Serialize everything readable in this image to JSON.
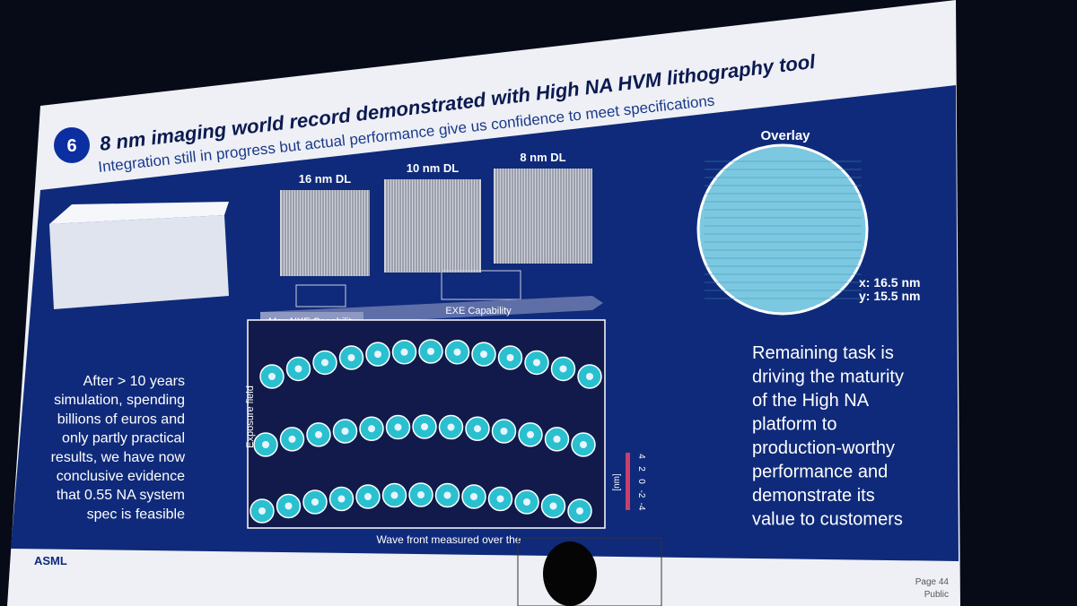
{
  "slide": {
    "number": "6",
    "title": "8 nm imaging world record demonstrated with High NA HVM lithography tool",
    "subtitle": "Integration still in progress but actual performance give us confidence to meet specifications",
    "images": [
      "16 nm DL",
      "10 nm DL",
      "8 nm DL"
    ],
    "capabilities": [
      "Max NXE Capability",
      "EXE Capability"
    ],
    "overlay": {
      "title": "Overlay",
      "x": "x: 16.5 nm",
      "y": "y: 15.5 nm"
    },
    "left_text": [
      "After > 10 years",
      "simulation, spending",
      "billions of euros and",
      "only partly practical",
      "results, we have now",
      "conclusive evidence",
      "that 0.55 NA system",
      "spec is feasible"
    ],
    "right_text": [
      "Remaining task is",
      "driving the maturity",
      "of the High NA",
      "platform to",
      "production-worthy",
      "performance and",
      "demonstrate its",
      "value to customers"
    ],
    "wavefront": {
      "axis_label": "Exposure field",
      "caption": "Wave front measured over the",
      "unit": "[nm]",
      "scale_ticks": [
        "4",
        "2",
        "0",
        "-2",
        "-4"
      ]
    },
    "footer": {
      "logo": "ASML",
      "page": "Page 44",
      "classification": "Public"
    }
  }
}
